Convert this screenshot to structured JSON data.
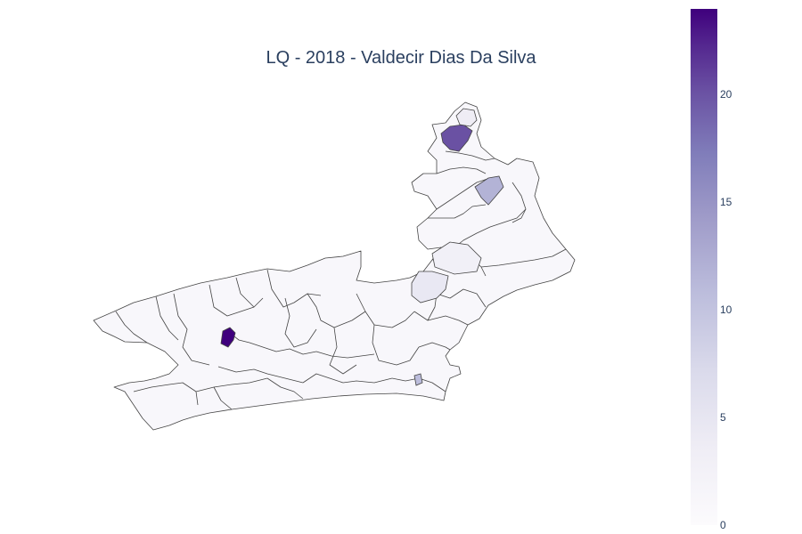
{
  "title": "LQ - 2018 - Valdecir Dias Da Silva",
  "colorbar": {
    "ticks": [
      "0",
      "5",
      "10",
      "15",
      "20"
    ],
    "tick_values": [
      0,
      5,
      10,
      15,
      20
    ],
    "min": 0,
    "max": 24,
    "colorscale": [
      "#fcfbfd",
      "#efedf5",
      "#dadaeb",
      "#bcbddc",
      "#9e9ac8",
      "#807dba",
      "#6a51a3",
      "#54278f",
      "#3f007d"
    ]
  },
  "map": {
    "region_border_color": "#444444",
    "base_fill": "#f8f7fb",
    "highlight_values": [
      22,
      18,
      10,
      8,
      3,
      2
    ]
  }
}
